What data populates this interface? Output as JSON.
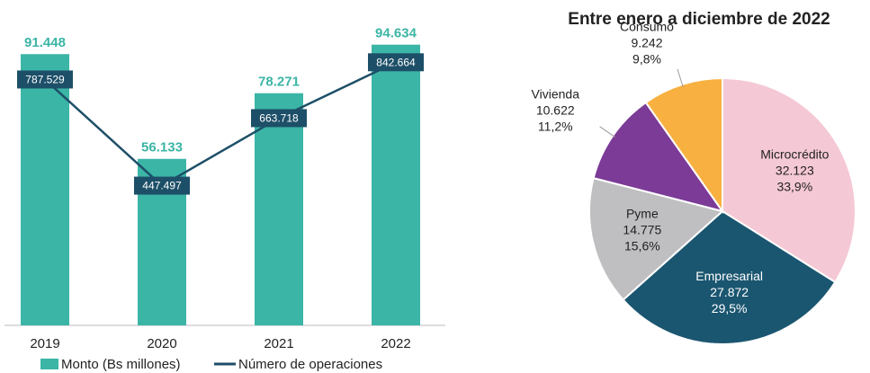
{
  "chart_data": [
    {
      "type": "bar_line",
      "categories": [
        "2019",
        "2020",
        "2021",
        "2022"
      ],
      "ylim": [
        0,
        100000
      ],
      "y2lim": [
        0,
        950000
      ],
      "series": [
        {
          "name": "Monto (Bs millones)",
          "color": "#3bb5a6",
          "values": [
            91448,
            56133,
            78271,
            94634
          ],
          "value_labels": [
            "91.448",
            "56.133",
            "78.271",
            "94.634"
          ]
        },
        {
          "name": "Número de operaciones",
          "color": "#1d4f68",
          "axis": "y2",
          "values": [
            787529,
            447497,
            663718,
            842664
          ],
          "value_labels": [
            "787.529",
            "447.497",
            "663.718",
            "842.664"
          ]
        }
      ]
    },
    {
      "type": "pie",
      "title": "Entre enero a diciembre de 2022",
      "categories": [
        "Microcrédito",
        "Empresarial",
        "Pyme",
        "Vivienda",
        "Consumo"
      ],
      "values": [
        32123,
        27872,
        14775,
        10622,
        9242
      ],
      "value_labels": [
        "32.123",
        "27.872",
        "14.775",
        "10.622",
        "9.242"
      ],
      "percentages": [
        33.9,
        29.5,
        15.6,
        11.2,
        9.8
      ],
      "percentage_labels": [
        "33,9%",
        "29,5%",
        "15,6%",
        "11,2%",
        "9,8%"
      ],
      "colors": [
        "#f5c8d5",
        "#1b5670",
        "#bfbfc2",
        "#7b3b96",
        "#f8b141"
      ]
    }
  ]
}
